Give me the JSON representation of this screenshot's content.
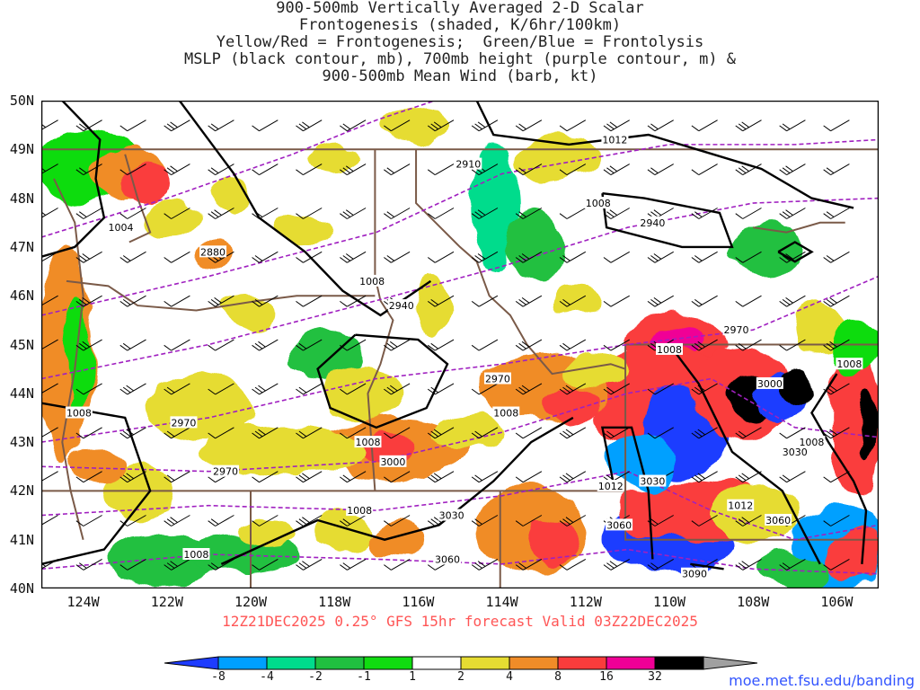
{
  "title_lines": [
    "900-500mb Vertically Averaged 2-D Scalar",
    "Frontogenesis (shaded, K/6hr/100km)",
    "Yellow/Red = Frontogenesis;  Green/Blue = Frontolysis",
    "MSLP (black contour, mb), 700mb height (purple contour, m) &",
    "900-500mb Mean Wind (barb, kt)"
  ],
  "axes": {
    "lat_labels": [
      "50N",
      "49N",
      "48N",
      "47N",
      "46N",
      "45N",
      "44N",
      "43N",
      "42N",
      "41N",
      "40N"
    ],
    "lat_values": [
      50,
      49,
      48,
      47,
      46,
      45,
      44,
      43,
      42,
      41,
      40
    ],
    "lon_labels": [
      "124W",
      "122W",
      "120W",
      "118W",
      "116W",
      "114W",
      "112W",
      "110W",
      "108W",
      "106W"
    ],
    "lon_values": [
      -124,
      -122,
      -120,
      -118,
      -116,
      -114,
      -112,
      -110,
      -108,
      -106
    ],
    "lon_range": [
      -125,
      -105
    ],
    "lat_range": [
      40,
      50
    ]
  },
  "valid_text": "12Z21DEC2025 0.25° GFS 15hr forecast Valid 03Z22DEC2025",
  "mslp_labels": [
    {
      "text": "1012",
      "lon": -111.3,
      "lat": 49.2
    },
    {
      "text": "1008",
      "lon": -111.7,
      "lat": 47.9
    },
    {
      "text": "1004",
      "lon": -123.1,
      "lat": 47.4
    },
    {
      "text": "1008",
      "lon": -117.1,
      "lat": 46.3
    },
    {
      "text": "1008",
      "lon": -110.0,
      "lat": 44.9
    },
    {
      "text": "1008",
      "lon": -105.7,
      "lat": 44.6
    },
    {
      "text": "1008",
      "lon": -124.1,
      "lat": 43.6
    },
    {
      "text": "1008",
      "lon": -113.9,
      "lat": 43.6
    },
    {
      "text": "1008",
      "lon": -117.2,
      "lat": 43.0
    },
    {
      "text": "1008",
      "lon": -106.6,
      "lat": 43.0
    },
    {
      "text": "1012",
      "lon": -111.4,
      "lat": 42.1
    },
    {
      "text": "1012",
      "lon": -108.3,
      "lat": 41.7
    },
    {
      "text": "1008",
      "lon": -117.4,
      "lat": 41.6
    },
    {
      "text": "1008",
      "lon": -121.3,
      "lat": 40.7
    }
  ],
  "height_labels": [
    {
      "text": "2910",
      "lon": -114.8,
      "lat": 48.7
    },
    {
      "text": "2940",
      "lon": -110.4,
      "lat": 47.5
    },
    {
      "text": "2880",
      "lon": -120.9,
      "lat": 46.9
    },
    {
      "text": "2940",
      "lon": -116.4,
      "lat": 45.8
    },
    {
      "text": "2970",
      "lon": -108.4,
      "lat": 45.3
    },
    {
      "text": "2970",
      "lon": -114.1,
      "lat": 44.3
    },
    {
      "text": "3000",
      "lon": -107.6,
      "lat": 44.2
    },
    {
      "text": "2970",
      "lon": -121.6,
      "lat": 43.4
    },
    {
      "text": "3000",
      "lon": -116.6,
      "lat": 42.6
    },
    {
      "text": "3030",
      "lon": -107.0,
      "lat": 42.8
    },
    {
      "text": "2970",
      "lon": -120.6,
      "lat": 42.4
    },
    {
      "text": "3030",
      "lon": -110.4,
      "lat": 42.2
    },
    {
      "text": "3030",
      "lon": -115.2,
      "lat": 41.5
    },
    {
      "text": "3060",
      "lon": -111.2,
      "lat": 41.3
    },
    {
      "text": "3060",
      "lon": -107.4,
      "lat": 41.4
    },
    {
      "text": "3060",
      "lon": -115.3,
      "lat": 40.6
    },
    {
      "text": "3090",
      "lon": -109.4,
      "lat": 40.3
    }
  ],
  "colorbar": {
    "labels": [
      "-8",
      "-4",
      "-2",
      "-1",
      "1",
      "2",
      "4",
      "8",
      "16",
      "32"
    ],
    "colors": [
      "#1e3cff",
      "#00a0ff",
      "#00dc8c",
      "#20c040",
      "#10dc10",
      "#ffffff",
      "#e6dc32",
      "#f08c28",
      "#fa3c3c",
      "#f00096",
      "#000000",
      "#a0a0a0"
    ]
  },
  "credit": "moe.met.fsu.edu/banding"
}
